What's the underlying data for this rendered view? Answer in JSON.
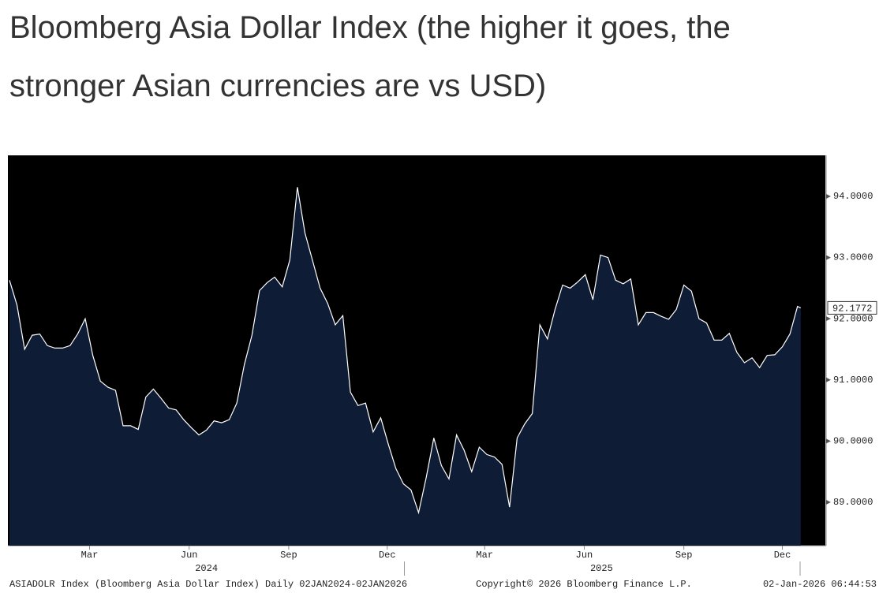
{
  "chart_data": {
    "type": "area",
    "title": "Bloomberg Asia Dollar Index (the higher it goes, the stronger Asian currencies are vs USD)",
    "x": [
      "2024-01-02",
      "2024-01-09",
      "2024-01-16",
      "2024-01-23",
      "2024-01-30",
      "2024-02-06",
      "2024-02-13",
      "2024-02-20",
      "2024-02-27",
      "2024-03-05",
      "2024-03-12",
      "2024-03-19",
      "2024-03-26",
      "2024-04-02",
      "2024-04-09",
      "2024-04-16",
      "2024-04-23",
      "2024-04-30",
      "2024-05-07",
      "2024-05-14",
      "2024-05-21",
      "2024-05-28",
      "2024-06-04",
      "2024-06-11",
      "2024-06-18",
      "2024-06-25",
      "2024-07-02",
      "2024-07-09",
      "2024-07-16",
      "2024-07-23",
      "2024-07-30",
      "2024-08-06",
      "2024-08-13",
      "2024-08-20",
      "2024-08-27",
      "2024-09-03",
      "2024-09-10",
      "2024-09-17",
      "2024-09-24",
      "2024-10-01",
      "2024-10-08",
      "2024-10-15",
      "2024-10-22",
      "2024-10-29",
      "2024-11-05",
      "2024-11-12",
      "2024-11-19",
      "2024-11-26",
      "2024-12-03",
      "2024-12-10",
      "2024-12-17",
      "2024-12-24",
      "2024-12-31",
      "2025-01-07",
      "2025-01-14",
      "2025-01-21",
      "2025-01-28",
      "2025-02-04",
      "2025-02-11",
      "2025-02-18",
      "2025-02-25",
      "2025-03-04",
      "2025-03-11",
      "2025-03-18",
      "2025-03-25",
      "2025-04-01",
      "2025-04-08",
      "2025-04-15",
      "2025-04-22",
      "2025-04-29",
      "2025-05-06",
      "2025-05-13",
      "2025-05-20",
      "2025-05-27",
      "2025-06-03",
      "2025-06-10",
      "2025-06-17",
      "2025-06-24",
      "2025-07-01",
      "2025-07-08",
      "2025-07-15",
      "2025-07-22",
      "2025-07-29",
      "2025-08-05",
      "2025-08-12",
      "2025-08-19",
      "2025-08-26",
      "2025-09-02",
      "2025-09-09",
      "2025-09-16",
      "2025-09-23",
      "2025-09-30",
      "2025-10-07",
      "2025-10-14",
      "2025-10-21",
      "2025-10-28",
      "2025-11-04",
      "2025-11-11",
      "2025-11-18",
      "2025-11-25",
      "2025-12-02",
      "2025-12-09",
      "2025-12-16",
      "2025-12-23",
      "2025-12-30",
      "2026-01-02"
    ],
    "series": [
      {
        "color": "#ffffff",
        "fill": "#0f1c36",
        "values": [
          92.63,
          92.22,
          91.5,
          91.73,
          91.75,
          91.56,
          91.52,
          91.52,
          91.56,
          91.75,
          92.0,
          91.4,
          90.98,
          90.88,
          90.83,
          90.25,
          90.25,
          90.19,
          90.72,
          90.85,
          90.7,
          90.54,
          90.51,
          90.35,
          90.22,
          90.1,
          90.18,
          90.33,
          90.3,
          90.35,
          90.62,
          91.25,
          91.73,
          92.46,
          92.59,
          92.68,
          92.52,
          92.96,
          94.15,
          93.4,
          92.95,
          92.5,
          92.25,
          91.9,
          92.05,
          90.8,
          90.58,
          90.62,
          90.15,
          90.38,
          89.95,
          89.55,
          89.3,
          89.2,
          88.83,
          89.4,
          90.05,
          89.6,
          89.38,
          90.1,
          89.85,
          89.5,
          89.9,
          89.78,
          89.74,
          89.62,
          88.92,
          90.05,
          90.28,
          90.45,
          91.9,
          91.67,
          92.15,
          92.55,
          92.5,
          92.6,
          92.72,
          92.31,
          93.04,
          93.0,
          92.63,
          92.57,
          92.65,
          91.9,
          92.1,
          92.1,
          92.04,
          91.99,
          92.15,
          92.55,
          92.45,
          92.0,
          91.93,
          91.65,
          91.65,
          91.76,
          91.45,
          91.28,
          91.36,
          91.2,
          91.4,
          91.41,
          91.54,
          91.75,
          92.2,
          92.1772
        ]
      }
    ],
    "xlim": [
      "2024-01-01",
      "2026-01-24"
    ],
    "xticks": [
      {
        "value": "2024-03-16",
        "label": "Mar"
      },
      {
        "value": "2024-06-16",
        "label": "Jun"
      },
      {
        "value": "2024-09-16",
        "label": "Sep"
      },
      {
        "value": "2024-12-16",
        "label": "Dec"
      },
      {
        "value": "2025-03-16",
        "label": "Mar"
      },
      {
        "value": "2025-06-16",
        "label": "Jun"
      },
      {
        "value": "2025-09-16",
        "label": "Sep"
      },
      {
        "value": "2025-12-16",
        "label": "Dec"
      }
    ],
    "year_ticks": [
      {
        "value": "2024-07-02",
        "label": "2024"
      },
      {
        "value": "2025-07-02",
        "label": "2025"
      }
    ],
    "ylim": [
      88.29,
      94.67
    ],
    "yticks": [
      {
        "value": 89,
        "label": "89.0000"
      },
      {
        "value": 90,
        "label": "90.0000"
      },
      {
        "value": 91,
        "label": "91.0000"
      },
      {
        "value": 92,
        "label": "92.0000"
      },
      {
        "value": 93,
        "label": "93.0000"
      },
      {
        "value": 94,
        "label": "94.0000"
      }
    ],
    "footer": {
      "left": "ASIADOLR Index (Bloomberg Asia Dollar Index) Daily 02JAN2024-02JAN2026",
      "center": "Copyright© 2026 Bloomberg Finance L.P.",
      "right": "02-Jan-2026 06:44:53"
    }
  }
}
